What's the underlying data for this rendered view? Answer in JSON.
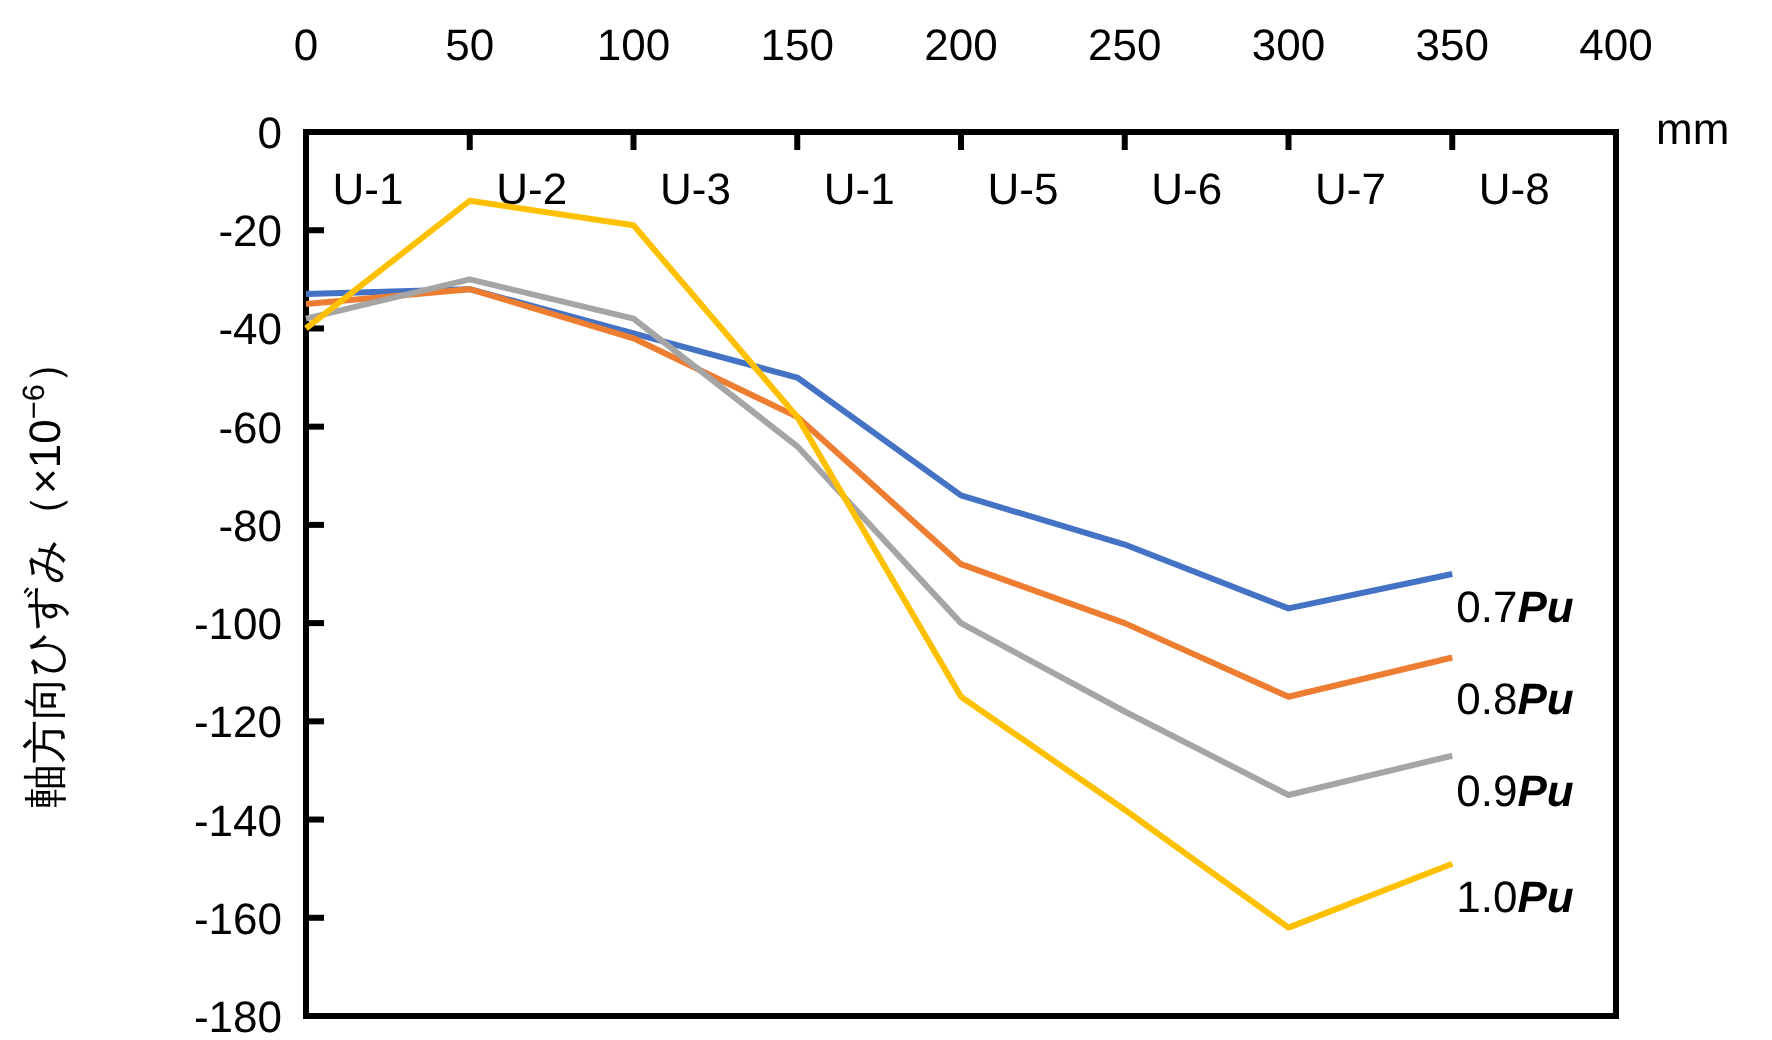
{
  "chart_data": {
    "type": "line",
    "xlabel": "mm",
    "ylabel": "軸方向ひずみ（×10$^{−6}$）",
    "x": [
      0,
      50,
      100,
      150,
      200,
      250,
      300,
      350
    ],
    "xlim": [
      0,
      400
    ],
    "xticks": [
      0,
      50,
      100,
      150,
      200,
      250,
      300,
      350,
      400
    ],
    "ylim": [
      -180,
      0
    ],
    "yticks": [
      -180,
      -160,
      -140,
      -120,
      -100,
      -80,
      -60,
      -40,
      -20,
      0
    ],
    "grid": false,
    "marker": "none",
    "line_style": "solid",
    "tick_labels": "xy",
    "series": [
      {
        "name": "0.7Pu",
        "color": "#4472c4",
        "values": [
          -33,
          -32,
          -41,
          -50,
          -74,
          -84,
          -97,
          -90
        ]
      },
      {
        "name": "0.8Pu",
        "color": "#ed7d31",
        "values": [
          -35,
          -32,
          -42,
          -58,
          -88,
          -100,
          -115,
          -107
        ]
      },
      {
        "name": "0.9Pu",
        "color": "#a5a5a5",
        "values": [
          -38,
          -30,
          -38,
          -64,
          -100,
          -118,
          -135,
          -127
        ]
      },
      {
        "name": "1.0Pu",
        "color": "#ffc000",
        "values": [
          -40,
          -14,
          -19,
          -58,
          -115,
          -138,
          -162,
          -149
        ]
      }
    ],
    "annotations": [
      "U-1",
      "U-2",
      "U-3",
      "U-1",
      "U-5",
      "U-6",
      "U-7",
      "U-8"
    ]
  }
}
